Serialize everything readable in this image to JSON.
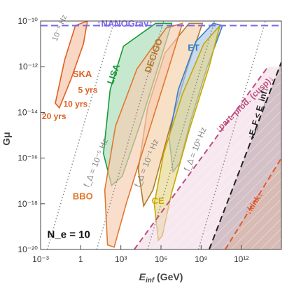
{
  "chart_data": {
    "type": "area",
    "xlabel": "E_inf (GeV)",
    "ylabel": "Gμ",
    "xscale": "log",
    "yscale": "log",
    "xlim_log10": [
      -3,
      15
    ],
    "ylim_log10": [
      -20,
      -10
    ],
    "xticks": [
      {
        "exp": -3,
        "label": "10⁻³"
      },
      {
        "exp": 0,
        "label": "1"
      },
      {
        "exp": 3,
        "label": "10³"
      },
      {
        "exp": 6,
        "label": "10⁶"
      },
      {
        "exp": 9,
        "label": "10⁹"
      },
      {
        "exp": 12,
        "label": "10¹²"
      }
    ],
    "yticks": [
      {
        "exp": -10,
        "label": "10⁻¹⁰"
      },
      {
        "exp": -12,
        "label": "10⁻¹²"
      },
      {
        "exp": -14,
        "label": "10⁻¹⁴"
      },
      {
        "exp": -16,
        "label": "10⁻¹⁶"
      },
      {
        "exp": -18,
        "label": "10⁻¹⁸"
      },
      {
        "exp": -20,
        "label": "10⁻²⁰"
      }
    ],
    "ne_label": "N_e = 10",
    "nanograv": {
      "label": "↑NANOGrav↑",
      "y_log10": -10.2,
      "color": "#7b68ee"
    },
    "frequency_lines": [
      {
        "label": "10⁻⁹ Hz",
        "slope": 2,
        "x0_log10": -2.5,
        "color": "#888888"
      },
      {
        "label": "f_Δ = 10⁻⁵ Hz",
        "slope": 2,
        "x0_log10": 1.2,
        "color": "#888888"
      },
      {
        "label": "f_Δ = 10⁻¹ Hz",
        "slope": 2,
        "x0_log10": 5.0,
        "color": "#888888"
      },
      {
        "label": "f_Δ = 10³ Hz",
        "slope": 2,
        "x0_log10": 8.8,
        "color": "#888888"
      }
    ],
    "series": [
      {
        "name": "SKA",
        "color": "#e06020",
        "fill": "#f5c2a6",
        "region": [
          [
            -1.9,
            -13.6
          ],
          [
            -1.2,
            -11.7
          ],
          [
            -0.4,
            -10.2
          ],
          [
            0.5,
            -10.0
          ],
          [
            0.2,
            -11.0
          ],
          [
            -0.7,
            -12.5
          ],
          [
            -1.6,
            -13.8
          ]
        ],
        "sub_labels": [
          "5 yrs",
          "10 yrs",
          "20 yrs"
        ]
      },
      {
        "name": "LISA",
        "color": "#1a9a3a",
        "fill": "#a8dcb4",
        "region": [
          [
            2.3,
            -17.2
          ],
          [
            1.7,
            -15.8
          ],
          [
            2.2,
            -13.0
          ],
          [
            3.2,
            -11.1
          ],
          [
            5.6,
            -10.1
          ],
          [
            6.8,
            -10.1
          ],
          [
            6.0,
            -11.6
          ],
          [
            4.4,
            -14.6
          ],
          [
            3.1,
            -16.8
          ]
        ]
      },
      {
        "name": "DECIGO",
        "color": "#b07a30",
        "fill": "#f2cfa8",
        "region": [
          [
            4.7,
            -18.1
          ],
          [
            4.3,
            -16.5
          ],
          [
            5.0,
            -13.8
          ],
          [
            6.3,
            -11.4
          ],
          [
            8.1,
            -10.1
          ],
          [
            9.1,
            -10.1
          ],
          [
            8.0,
            -12.0
          ],
          [
            6.6,
            -14.8
          ],
          [
            5.4,
            -17.4
          ]
        ]
      },
      {
        "name": "ET",
        "color": "#3a7fc0",
        "fill": "#a8c8e8",
        "region": [
          [
            6.9,
            -16.6
          ],
          [
            6.6,
            -15.1
          ],
          [
            7.3,
            -13.0
          ],
          [
            8.6,
            -10.9
          ],
          [
            9.9,
            -10.1
          ],
          [
            10.6,
            -10.2
          ],
          [
            9.4,
            -12.1
          ],
          [
            8.2,
            -14.4
          ],
          [
            7.4,
            -16.2
          ]
        ]
      },
      {
        "name": "BBO",
        "color": "#e07830",
        "fill": "#f7cdb0",
        "region": [
          [
            2.0,
            -19.8
          ],
          [
            1.8,
            -17.4
          ],
          [
            2.6,
            -14.6
          ],
          [
            4.2,
            -12.1
          ],
          [
            6.4,
            -10.3
          ],
          [
            7.6,
            -10.1
          ],
          [
            6.5,
            -12.2
          ],
          [
            5.0,
            -15.0
          ],
          [
            3.4,
            -18.0
          ],
          [
            2.5,
            -19.9
          ]
        ]
      },
      {
        "name": "CE",
        "color": "#c8a800",
        "fill": "#e6d58a",
        "region": [
          [
            5.8,
            -19.6
          ],
          [
            5.5,
            -18.0
          ],
          [
            6.2,
            -15.8
          ],
          [
            7.6,
            -13.2
          ],
          [
            9.2,
            -11.0
          ],
          [
            10.4,
            -10.2
          ],
          [
            9.6,
            -12.0
          ],
          [
            8.1,
            -14.8
          ],
          [
            6.8,
            -17.5
          ],
          [
            6.1,
            -19.4
          ]
        ]
      }
    ],
    "constraints": [
      {
        "label": "↓part. prod. (cusp)↓",
        "color": "#c04d80",
        "fill": "#f0d5e2",
        "line": [
          [
            4.0,
            -20.0
          ],
          [
            14.0,
            -12.0
          ]
        ],
        "dash": "8,5"
      },
      {
        "label": "↓E_F < E_inf↓",
        "color": "#222222",
        "fill": "#b8a0a8",
        "line": [
          [
            9.6,
            -20.0
          ],
          [
            15.0,
            -11.8
          ]
        ],
        "dash": "9,5"
      },
      {
        "label": "↓kink↓",
        "color": "#e05a30",
        "fill": "#d8b6a4",
        "line": [
          [
            10.8,
            -20.0
          ],
          [
            15.0,
            -16.0
          ]
        ],
        "dash": "8,5"
      }
    ]
  }
}
